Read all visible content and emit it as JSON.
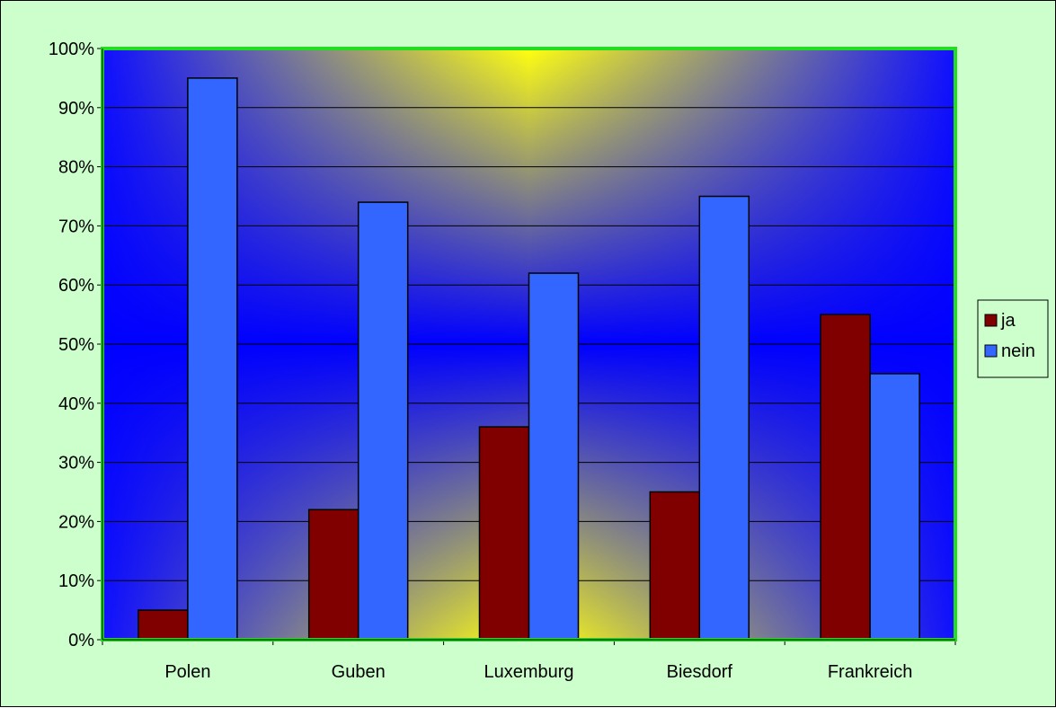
{
  "chart_data": {
    "type": "bar",
    "categories": [
      "Polen",
      "Guben",
      "Luxemburg",
      "Biesdorf",
      "Frankreich"
    ],
    "series": [
      {
        "name": "ja",
        "values": [
          5,
          22,
          36,
          25,
          55
        ],
        "color": "#800000"
      },
      {
        "name": "nein",
        "values": [
          95,
          74,
          62,
          75,
          45
        ],
        "color": "#3366ff"
      }
    ],
    "yticks": [
      "0%",
      "10%",
      "20%",
      "30%",
      "40%",
      "50%",
      "60%",
      "70%",
      "80%",
      "90%",
      "100%"
    ],
    "ylim": [
      0,
      100
    ],
    "grid": true,
    "legend": "right",
    "colors": {
      "chart_area": "#ccffcc",
      "plot_border": "#22dd22",
      "plot_center": "#ffff00",
      "plot_edge": "#0000ff"
    }
  }
}
